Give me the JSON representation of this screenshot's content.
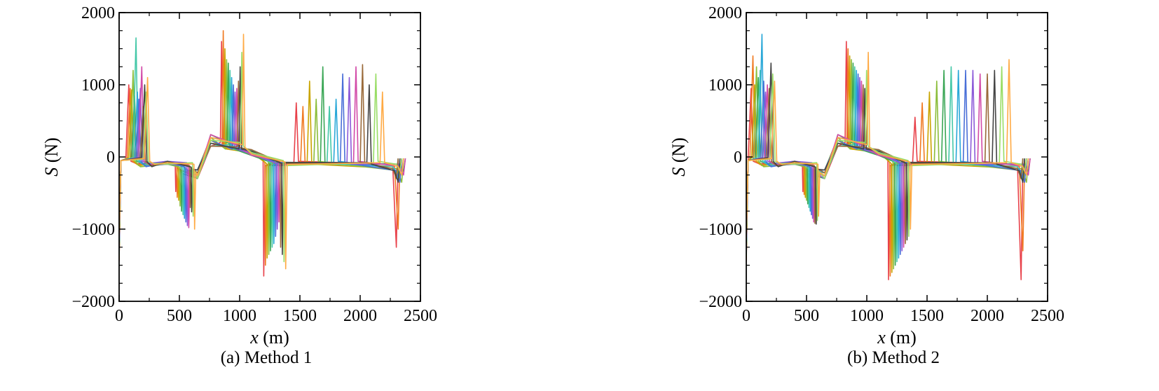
{
  "colors": [
    "#e8414a",
    "#f07a22",
    "#c9a400",
    "#8bbd3a",
    "#3aa655",
    "#45c8a8",
    "#2aa8d8",
    "#4a6fd8",
    "#8c5ad8",
    "#d24aa8",
    "#9a6a3a",
    "#444444",
    "#99dd66",
    "#ffaa44"
  ],
  "chart_data": [
    {
      "type": "line",
      "caption": "(a) Method 1",
      "xlabel_var": "x",
      "xlabel_unit": " (m)",
      "ylabel_var": "S",
      "ylabel_unit": " (N)",
      "xlim": [
        0,
        2500
      ],
      "ylim": [
        -2000,
        2000
      ],
      "xticks": [
        "0",
        "500",
        "1000",
        "1500",
        "2000",
        "2500"
      ],
      "yticks": [
        "2000",
        "1000",
        "0",
        "−1000",
        "−2000"
      ],
      "series_count": 14,
      "pattern": {
        "peak_a": {
          "x_start": 80,
          "x_step": 12,
          "values": [
            1000,
            950,
            930,
            1200,
            850,
            1650,
            900,
            800,
            950,
            1250,
            700,
            1000,
            900,
            1100
          ]
        },
        "dip_a": {
          "x_start": 470,
          "x_step": 12,
          "values": [
            -480,
            -560,
            -600,
            -680,
            -750,
            -800,
            -850,
            -900,
            -950,
            -980,
            -700,
            -760,
            -820,
            -1000
          ]
        },
        "peak_b": {
          "x_start": 850,
          "x_step": 14,
          "values": [
            1600,
            1750,
            1500,
            1350,
            1300,
            1200,
            1100,
            1000,
            900,
            950,
            1050,
            1250,
            1450,
            1700
          ]
        },
        "dip_b": {
          "x_start": 1200,
          "x_step": 14,
          "values": [
            -1650,
            -1500,
            -1400,
            -1350,
            -1300,
            -1250,
            -1200,
            -1100,
            -1000,
            -900,
            -1250,
            -1350,
            -1450,
            -1550
          ]
        },
        "peak_c": {
          "x_start": 1470,
          "x_step": 55,
          "values": [
            750,
            700,
            1050,
            800,
            1250,
            700,
            800,
            1150,
            1100,
            1250,
            1280,
            1000,
            1150,
            900
          ]
        },
        "end_dip": {
          "x": 2300,
          "values": [
            -1250,
            -1000
          ]
        }
      }
    },
    {
      "type": "line",
      "caption": "(b) Method 2",
      "xlabel_var": "x",
      "xlabel_unit": " (m)",
      "ylabel_var": "S",
      "ylabel_unit": " (N)",
      "xlim": [
        0,
        2500
      ],
      "ylim": [
        -2000,
        2000
      ],
      "xticks": [
        "0",
        "500",
        "1000",
        "1500",
        "2000",
        "2500"
      ],
      "yticks": [
        "2000",
        "1000",
        "0",
        "−1000",
        "−2000"
      ],
      "series_count": 14,
      "pattern": {
        "peak_a": {
          "x_start": 40,
          "x_step": 15,
          "values": [
            950,
            1400,
            1000,
            1250,
            1100,
            1200,
            1700,
            1050,
            900,
            1000,
            950,
            1300,
            1150,
            1050
          ]
        },
        "dip_a": {
          "x_start": 470,
          "x_step": 10,
          "values": [
            -480,
            -520,
            -560,
            -600,
            -650,
            -700,
            -750,
            -800,
            -850,
            -900,
            -920,
            -930,
            -880,
            -820
          ]
        },
        "peak_b": {
          "x_start": 830,
          "x_step": 14,
          "values": [
            1600,
            1500,
            1400,
            1350,
            1300,
            1250,
            1200,
            1150,
            1100,
            1050,
            1000,
            950,
            1200,
            1450
          ]
        },
        "dip_b": {
          "x_start": 1180,
          "x_step": 14,
          "values": [
            -1700,
            -1650,
            -1600,
            -1550,
            -1500,
            -1450,
            -1400,
            -1350,
            -1300,
            -1250,
            -1200,
            -1150,
            -1100,
            -1000
          ]
        },
        "peak_c": {
          "x_start": 1400,
          "x_step": 60,
          "values": [
            550,
            750,
            900,
            1050,
            1200,
            1250,
            1200,
            1200,
            1200,
            1150,
            1150,
            1200,
            1250,
            1350
          ]
        },
        "end_dip": {
          "x": 2280,
          "values": [
            -1700,
            -1300
          ]
        }
      }
    }
  ]
}
